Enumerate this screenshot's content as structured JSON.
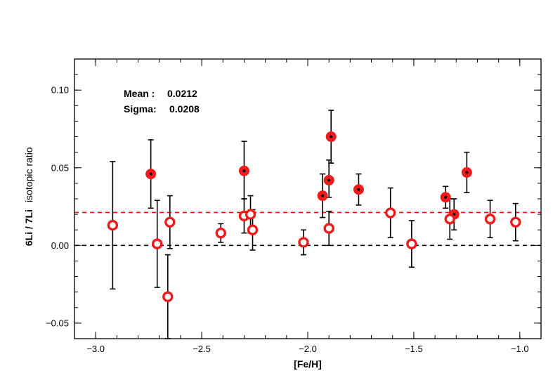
{
  "chart_data": {
    "type": "scatter",
    "title": "",
    "xlabel": "[Fe/H]",
    "ylabel_bold": "6Li / 7Li",
    "ylabel_normal": "isotopic ratio",
    "xlim": [
      -3.1,
      -0.9
    ],
    "ylim": [
      -0.06,
      0.12
    ],
    "xticks": [
      {
        "value": -3.0,
        "label": "−3.0"
      },
      {
        "value": -2.5,
        "label": "−2.5"
      },
      {
        "value": -2.0,
        "label": "−2.0"
      },
      {
        "value": -1.5,
        "label": "−1.5"
      },
      {
        "value": -1.0,
        "label": "−1.0"
      }
    ],
    "yticks": [
      {
        "value": -0.05,
        "label": "−0.05"
      },
      {
        "value": 0.0,
        "label": "0.00"
      },
      {
        "value": 0.05,
        "label": "0.05"
      },
      {
        "value": 0.1,
        "label": "0.10"
      }
    ],
    "annotations": [
      {
        "label": "Mean :",
        "value": "0.0212"
      },
      {
        "label": "Sigma:",
        "value": "0.0208"
      }
    ],
    "reference_lines": [
      {
        "y": 0.0212,
        "color": "#ff0000",
        "style": "dashed"
      },
      {
        "y": 0.0,
        "color": "#000000",
        "style": "dashed"
      }
    ],
    "series": [
      {
        "marker": "filled-circle",
        "color": "#ee1c1c",
        "points": [
          {
            "x": -2.74,
            "y": 0.046,
            "ylo": 0.024,
            "yhi": 0.068
          },
          {
            "x": -2.3,
            "y": 0.048,
            "ylo": 0.03,
            "yhi": 0.067
          },
          {
            "x": -1.93,
            "y": 0.032,
            "ylo": 0.018,
            "yhi": 0.046
          },
          {
            "x": -1.9,
            "y": 0.042,
            "ylo": 0.031,
            "yhi": 0.055
          },
          {
            "x": -1.89,
            "y": 0.07,
            "ylo": 0.053,
            "yhi": 0.087
          },
          {
            "x": -1.76,
            "y": 0.036,
            "ylo": 0.026,
            "yhi": 0.046
          },
          {
            "x": -1.35,
            "y": 0.031,
            "ylo": 0.024,
            "yhi": 0.038
          },
          {
            "x": -1.31,
            "y": 0.02,
            "ylo": 0.01,
            "yhi": 0.03
          },
          {
            "x": -1.25,
            "y": 0.047,
            "ylo": 0.034,
            "yhi": 0.06
          }
        ]
      },
      {
        "marker": "open-circle",
        "color": "#ee1c1c",
        "points": [
          {
            "x": -2.92,
            "y": 0.013,
            "ylo": -0.028,
            "yhi": 0.054
          },
          {
            "x": -2.71,
            "y": 0.001,
            "ylo": -0.027,
            "yhi": 0.029
          },
          {
            "x": -2.66,
            "y": -0.033,
            "ylo": -0.06,
            "yhi": -0.006
          },
          {
            "x": -2.65,
            "y": 0.015,
            "ylo": -0.002,
            "yhi": 0.032
          },
          {
            "x": -2.41,
            "y": 0.008,
            "ylo": 0.002,
            "yhi": 0.014
          },
          {
            "x": -2.3,
            "y": 0.019,
            "ylo": 0.008,
            "yhi": 0.03
          },
          {
            "x": -2.27,
            "y": 0.02,
            "ylo": 0.008,
            "yhi": 0.032
          },
          {
            "x": -2.26,
            "y": 0.01,
            "ylo": -0.003,
            "yhi": 0.023
          },
          {
            "x": -2.02,
            "y": 0.002,
            "ylo": -0.006,
            "yhi": 0.01
          },
          {
            "x": -1.9,
            "y": 0.011,
            "ylo": 0.0,
            "yhi": 0.022
          },
          {
            "x": -1.61,
            "y": 0.021,
            "ylo": 0.005,
            "yhi": 0.037
          },
          {
            "x": -1.51,
            "y": 0.001,
            "ylo": -0.014,
            "yhi": 0.016
          },
          {
            "x": -1.33,
            "y": 0.017,
            "ylo": 0.004,
            "yhi": 0.03
          },
          {
            "x": -1.14,
            "y": 0.017,
            "ylo": 0.005,
            "yhi": 0.029
          },
          {
            "x": -1.02,
            "y": 0.015,
            "ylo": 0.003,
            "yhi": 0.027
          }
        ]
      }
    ]
  }
}
